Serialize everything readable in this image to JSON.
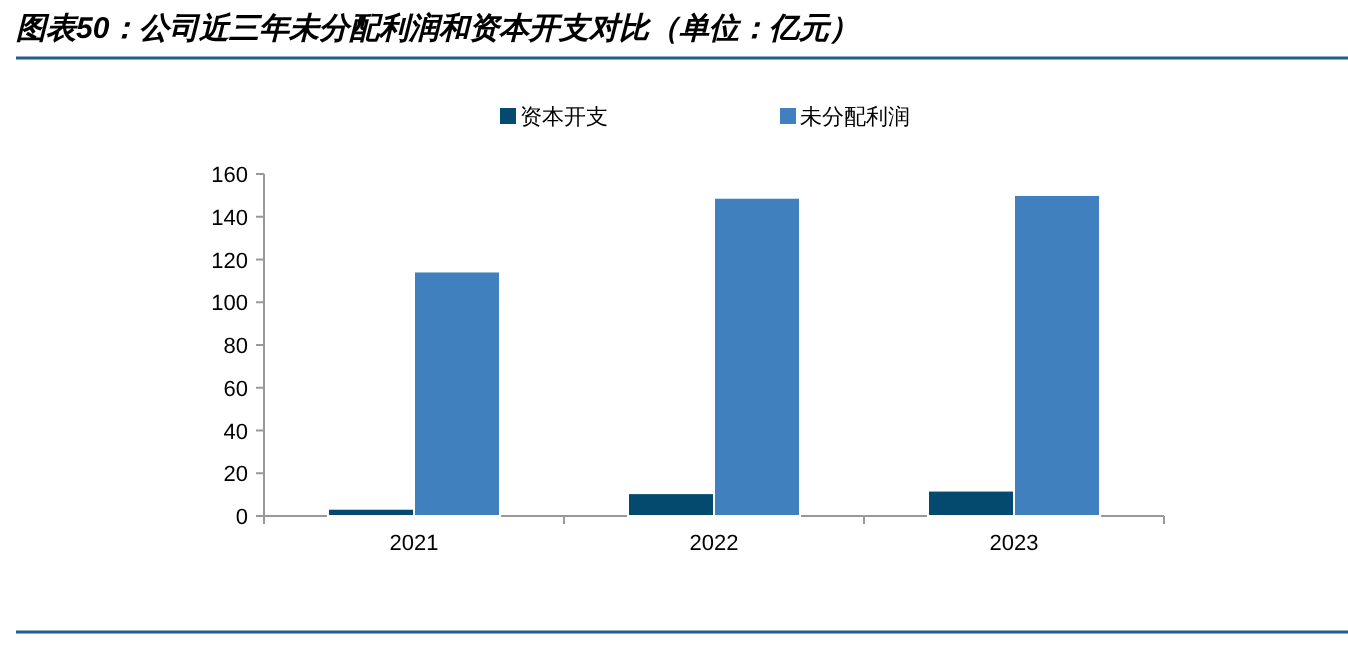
{
  "chart_data": {
    "type": "bar",
    "title": "图表50：公司近三年未分配利润和资本开支对比（单位：亿元）",
    "categories": [
      "2021",
      "2022",
      "2023"
    ],
    "series": [
      {
        "name": "资本开支",
        "color": "#034a6e",
        "values": [
          3.4,
          10.7,
          11.9
        ]
      },
      {
        "name": "未分配利润",
        "color": "#4180bf",
        "values": [
          114.4,
          148.9,
          150.2
        ]
      }
    ],
    "ylim": [
      0,
      160
    ],
    "yticks": [
      0,
      20,
      40,
      60,
      80,
      100,
      120,
      140,
      160
    ],
    "grid": false,
    "legend": "top"
  }
}
